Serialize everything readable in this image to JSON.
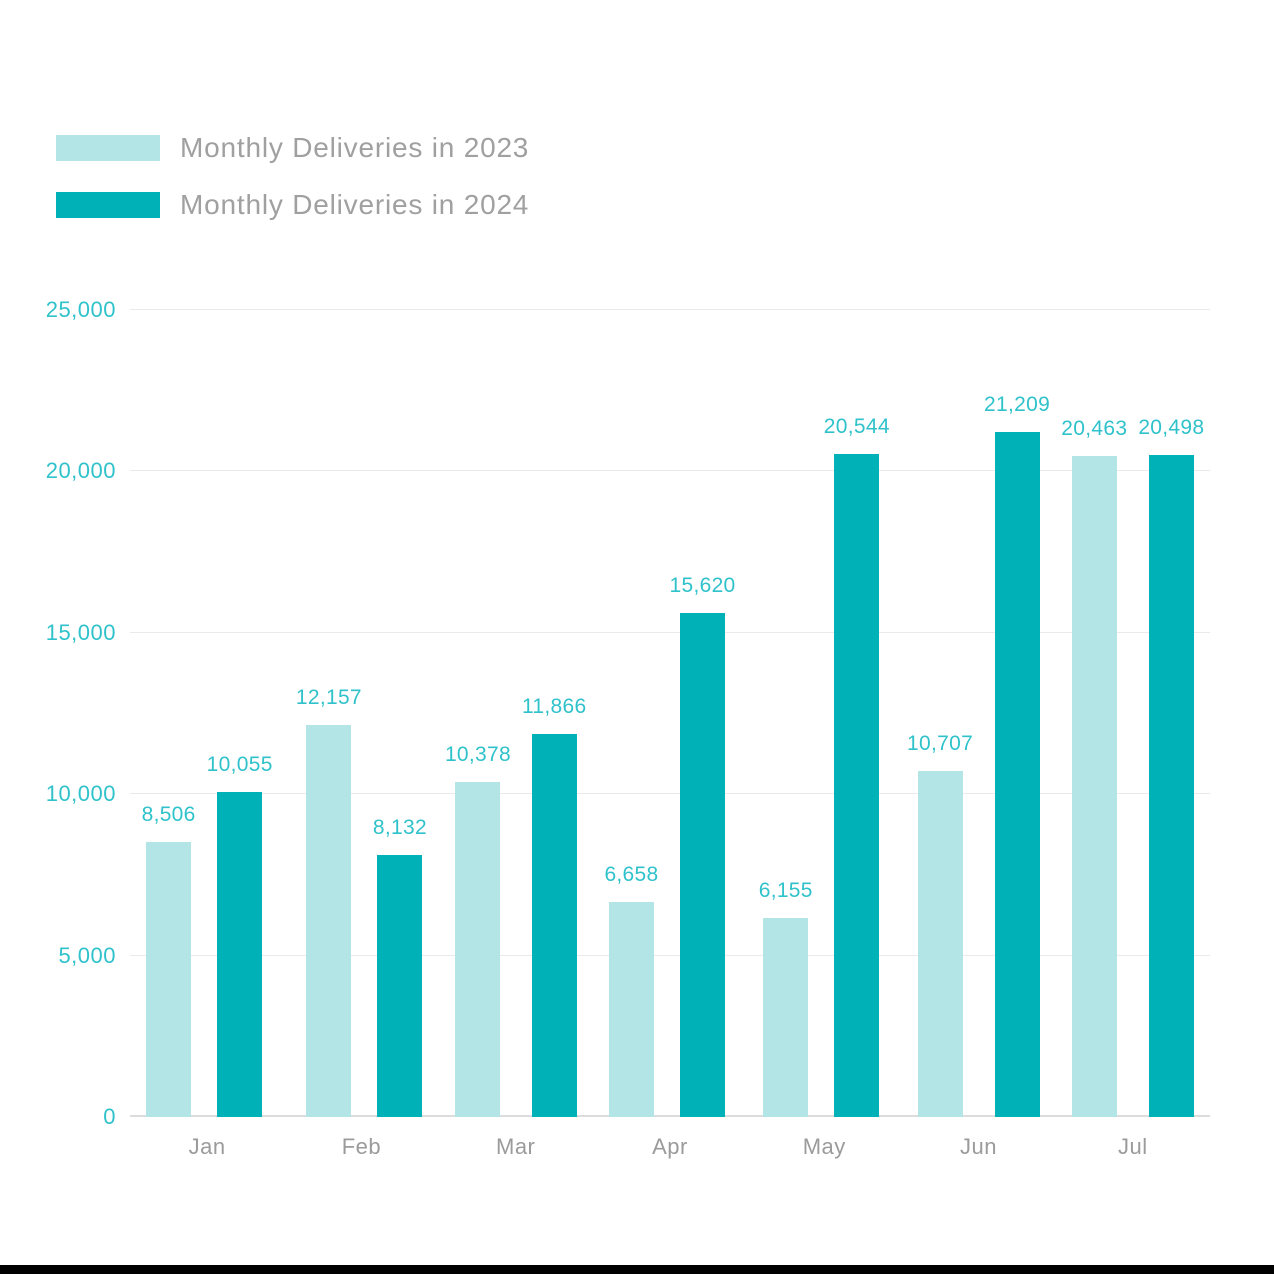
{
  "legend": {
    "items": [
      {
        "label": "Monthly Deliveries in 2023",
        "color": "#b3e4e6"
      },
      {
        "label": "Monthly Deliveries in 2024",
        "color": "#00b1b8"
      }
    ]
  },
  "chart_data": {
    "type": "bar",
    "title": "",
    "categories": [
      "Jan",
      "Feb",
      "Mar",
      "Apr",
      "May",
      "Jun",
      "Jul"
    ],
    "series": [
      {
        "name": "Monthly Deliveries in 2023",
        "color": "#b3e4e6",
        "values": [
          8506,
          12157,
          10378,
          6658,
          6155,
          10707,
          20463
        ]
      },
      {
        "name": "Monthly Deliveries in 2024",
        "color": "#00b1b8",
        "values": [
          10055,
          8132,
          11866,
          15620,
          20544,
          21209,
          20498
        ]
      }
    ],
    "value_labels_shown": true,
    "xlabel": "",
    "ylabel": "",
    "ylim": [
      0,
      25000
    ],
    "y_ticks": [
      0,
      5000,
      10000,
      15000,
      20000,
      25000
    ],
    "grid": "horizontal",
    "legend_position": "top-left",
    "colors": {
      "series_2023": "#b3e4e6",
      "series_2024": "#00b1b8",
      "tick_and_value_text": "#30c2cb",
      "category_text": "#9b9b9b",
      "legend_text": "#a0a0a0",
      "gridline": "#eaeaea",
      "axis_line": "#dcdcdc",
      "background": "#ffffff",
      "bottom_strip": "#000000"
    }
  }
}
